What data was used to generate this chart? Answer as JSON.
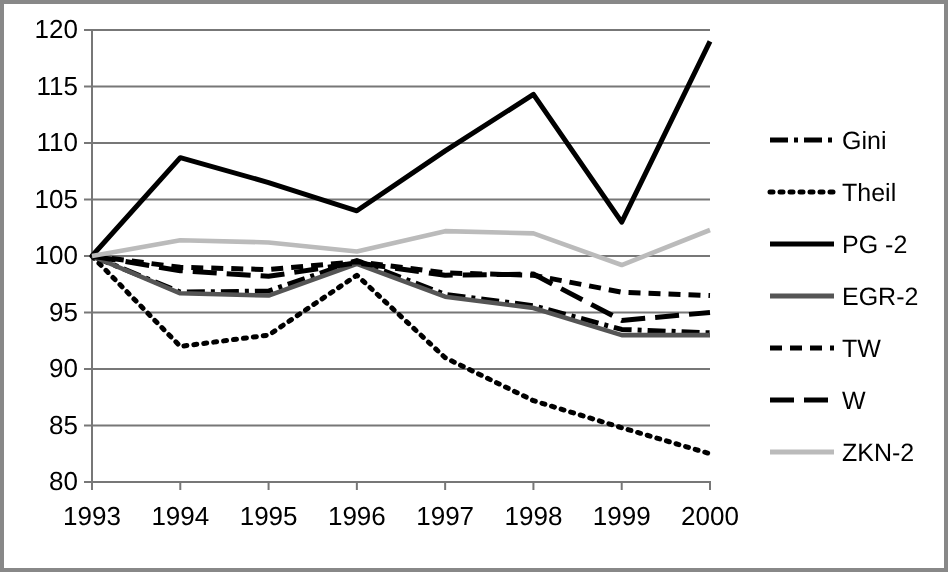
{
  "chart_data": {
    "type": "line",
    "x": [
      1993,
      1994,
      1995,
      1996,
      1997,
      1998,
      1999,
      2000
    ],
    "xlim": [
      1993,
      2000
    ],
    "xticks": [
      1993,
      1994,
      1995,
      1996,
      1997,
      1998,
      1999,
      2000
    ],
    "ylim": [
      80,
      120
    ],
    "yticks": [
      80,
      85,
      90,
      95,
      100,
      105,
      110,
      115,
      120
    ],
    "grid": "y",
    "legend": "right",
    "marker": "none",
    "series": [
      {
        "name": "Gini",
        "color": "#000000",
        "line_style": "dashdot",
        "values": [
          100,
          96.8,
          96.9,
          99.6,
          96.6,
          95.6,
          93.5,
          93.2
        ]
      },
      {
        "name": "Theil",
        "color": "#000000",
        "line_style": "dotted",
        "values": [
          100,
          92,
          93,
          98.3,
          91,
          87.2,
          84.8,
          82.5
        ]
      },
      {
        "name": "PG -2",
        "color": "#000000",
        "line_style": "solid",
        "values": [
          100,
          108.7,
          106.5,
          104,
          109.3,
          114.3,
          103,
          119
        ]
      },
      {
        "name": "EGR-2",
        "color": "#555555",
        "line_style": "solid",
        "values": [
          100,
          96.7,
          96.5,
          99.3,
          96.4,
          95.4,
          93,
          93
        ]
      },
      {
        "name": "TW",
        "color": "#000000",
        "line_style": "dashed",
        "values": [
          100,
          99,
          98.8,
          99.5,
          98.5,
          98.3,
          96.8,
          96.5
        ]
      },
      {
        "name": "W",
        "color": "#000000",
        "line_style": "longdash",
        "values": [
          100,
          98.7,
          98.2,
          99.4,
          98.3,
          98.4,
          94.3,
          95
        ]
      },
      {
        "name": "ZKN-2",
        "color": "#bbbbbb",
        "line_style": "solid",
        "values": [
          100,
          101.4,
          101.2,
          100.4,
          102.2,
          102,
          99.2,
          102.3
        ]
      }
    ]
  }
}
